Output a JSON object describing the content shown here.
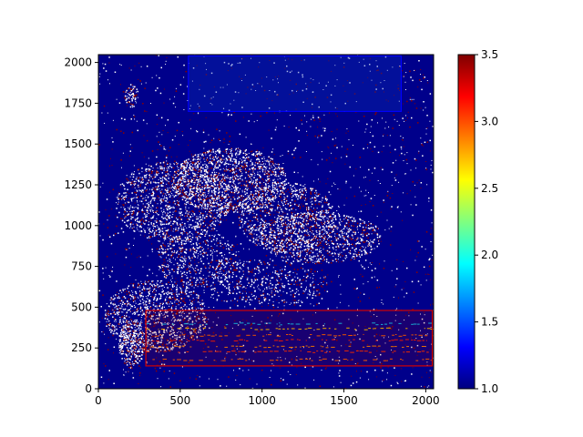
{
  "chart_data": {
    "type": "heatmap",
    "title": "",
    "xlabel": "",
    "ylabel": "",
    "xlim": [
      0,
      2048
    ],
    "ylim": [
      0,
      2048
    ],
    "xticks": [
      0,
      500,
      1000,
      1500,
      2000
    ],
    "yticks": [
      0,
      250,
      500,
      750,
      1000,
      1250,
      1500,
      1750,
      2000
    ],
    "xtick_labels": [
      "0",
      "500",
      "1000",
      "1500",
      "2000"
    ],
    "ytick_labels": [
      "0",
      "250",
      "500",
      "750",
      "1000",
      "1250",
      "1500",
      "1750",
      "2000"
    ],
    "colormap": "jet",
    "colorbar": {
      "min": 1.0,
      "max": 3.5,
      "ticks": [
        1.0,
        1.5,
        2.0,
        2.5,
        3.0,
        3.5
      ],
      "tick_labels": [
        "1.0",
        "1.5",
        "2.0",
        "2.5",
        "3.0",
        "3.5"
      ]
    },
    "background_value": 1.0,
    "speckle_colors": [
      "#ffffff",
      "#8b0000"
    ],
    "regions": [
      {
        "x0": 550,
        "x1": 1850,
        "y0": 1700,
        "y1": 2040,
        "color": "#0000ff",
        "fill": "#0a2fb8",
        "fill_opacity": 0.35
      },
      {
        "x0": 290,
        "x1": 2040,
        "y0": 140,
        "y1": 480,
        "color": "#d40000",
        "fill": "#8b0000",
        "fill_opacity": 0.18
      }
    ],
    "highlight_lines": [
      {
        "y": 400,
        "x0": 290,
        "x1": 2040,
        "color": "#00d0ff"
      },
      {
        "y": 370,
        "x0": 290,
        "x1": 2040,
        "color": "#ffd000"
      },
      {
        "y": 330,
        "x0": 290,
        "x1": 2040,
        "color": "#ff6600"
      },
      {
        "y": 300,
        "x0": 290,
        "x1": 2040,
        "color": "#ff2200"
      },
      {
        "y": 260,
        "x0": 290,
        "x1": 2040,
        "color": "#ff8800"
      },
      {
        "y": 230,
        "x0": 290,
        "x1": 2040,
        "color": "#ff3300"
      },
      {
        "y": 180,
        "x0": 290,
        "x1": 2040,
        "color": "#ff6600"
      }
    ],
    "dense_areas": [
      {
        "cx": 800,
        "cy": 1280,
        "rx": 350,
        "ry": 200,
        "density": 0.55
      },
      {
        "cx": 450,
        "cy": 1150,
        "rx": 350,
        "ry": 250,
        "density": 0.4
      },
      {
        "cx": 1150,
        "cy": 1050,
        "rx": 300,
        "ry": 220,
        "density": 0.35
      },
      {
        "cx": 1350,
        "cy": 930,
        "rx": 380,
        "ry": 160,
        "density": 0.4
      },
      {
        "cx": 350,
        "cy": 450,
        "rx": 320,
        "ry": 220,
        "density": 0.45
      },
      {
        "cx": 200,
        "cy": 280,
        "rx": 80,
        "ry": 150,
        "density": 0.75
      },
      {
        "cx": 200,
        "cy": 1800,
        "rx": 40,
        "ry": 70,
        "density": 0.7
      },
      {
        "cx": 600,
        "cy": 800,
        "rx": 250,
        "ry": 180,
        "density": 0.3
      },
      {
        "cx": 1000,
        "cy": 650,
        "rx": 400,
        "ry": 150,
        "density": 0.2
      }
    ]
  }
}
